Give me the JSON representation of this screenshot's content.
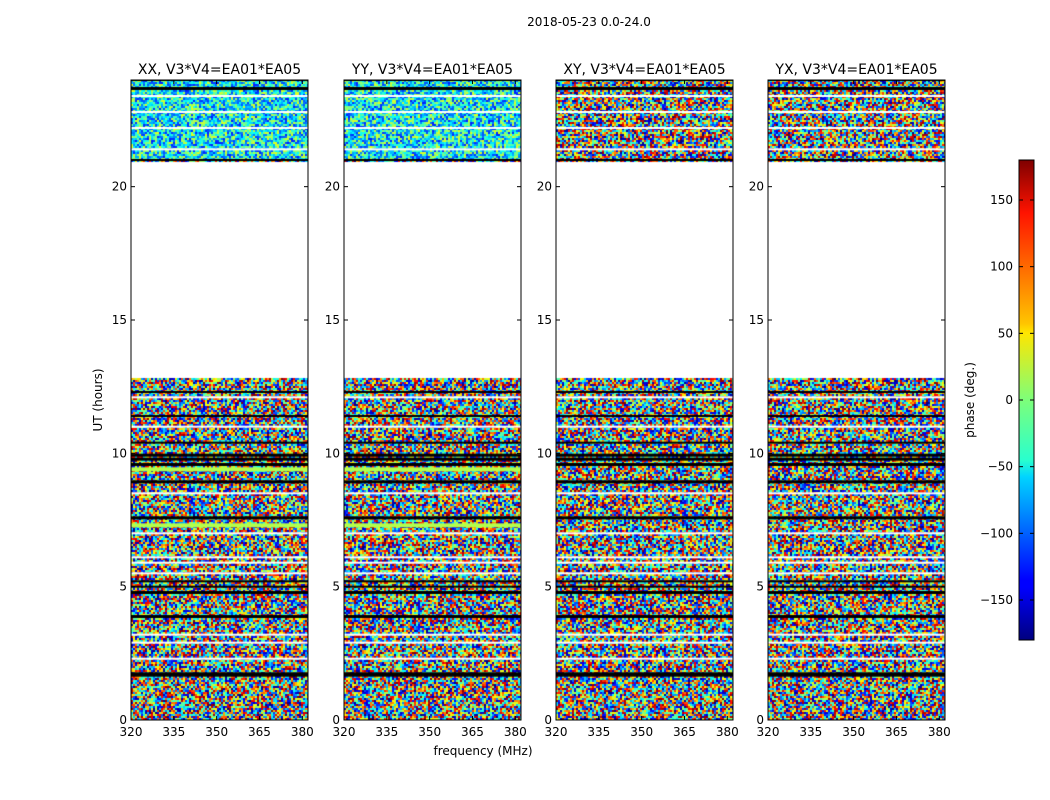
{
  "figure": {
    "title": "2018-05-23 0.0-24.0"
  },
  "chart_data": {
    "type": "heatmap",
    "title": "2018-05-23 0.0-24.0",
    "xlabel": "frequency (MHz)",
    "ylabel": "UT (hours)",
    "xlim": [
      320,
      382
    ],
    "ylim": [
      0,
      24
    ],
    "xticks": [
      320,
      335,
      350,
      365,
      380
    ],
    "yticks": [
      0,
      5,
      10,
      15,
      20
    ],
    "panels": [
      {
        "title": "XX, V3*V4=EA01*EA05",
        "pol": "XX"
      },
      {
        "title": "YY, V3*V4=EA01*EA05",
        "pol": "YY"
      },
      {
        "title": "XY, V3*V4=EA01*EA05",
        "pol": "XY"
      },
      {
        "title": "YX, V3*V4=EA01*EA05",
        "pol": "YX"
      }
    ],
    "data_gaps_hours": [
      [
        12.85,
        21.0
      ]
    ],
    "colorbar": {
      "label": "phase (deg.)",
      "range": [
        -180,
        180
      ],
      "ticks": [
        -150,
        -100,
        -50,
        0,
        50,
        100,
        150
      ],
      "colormap": "jet"
    }
  }
}
